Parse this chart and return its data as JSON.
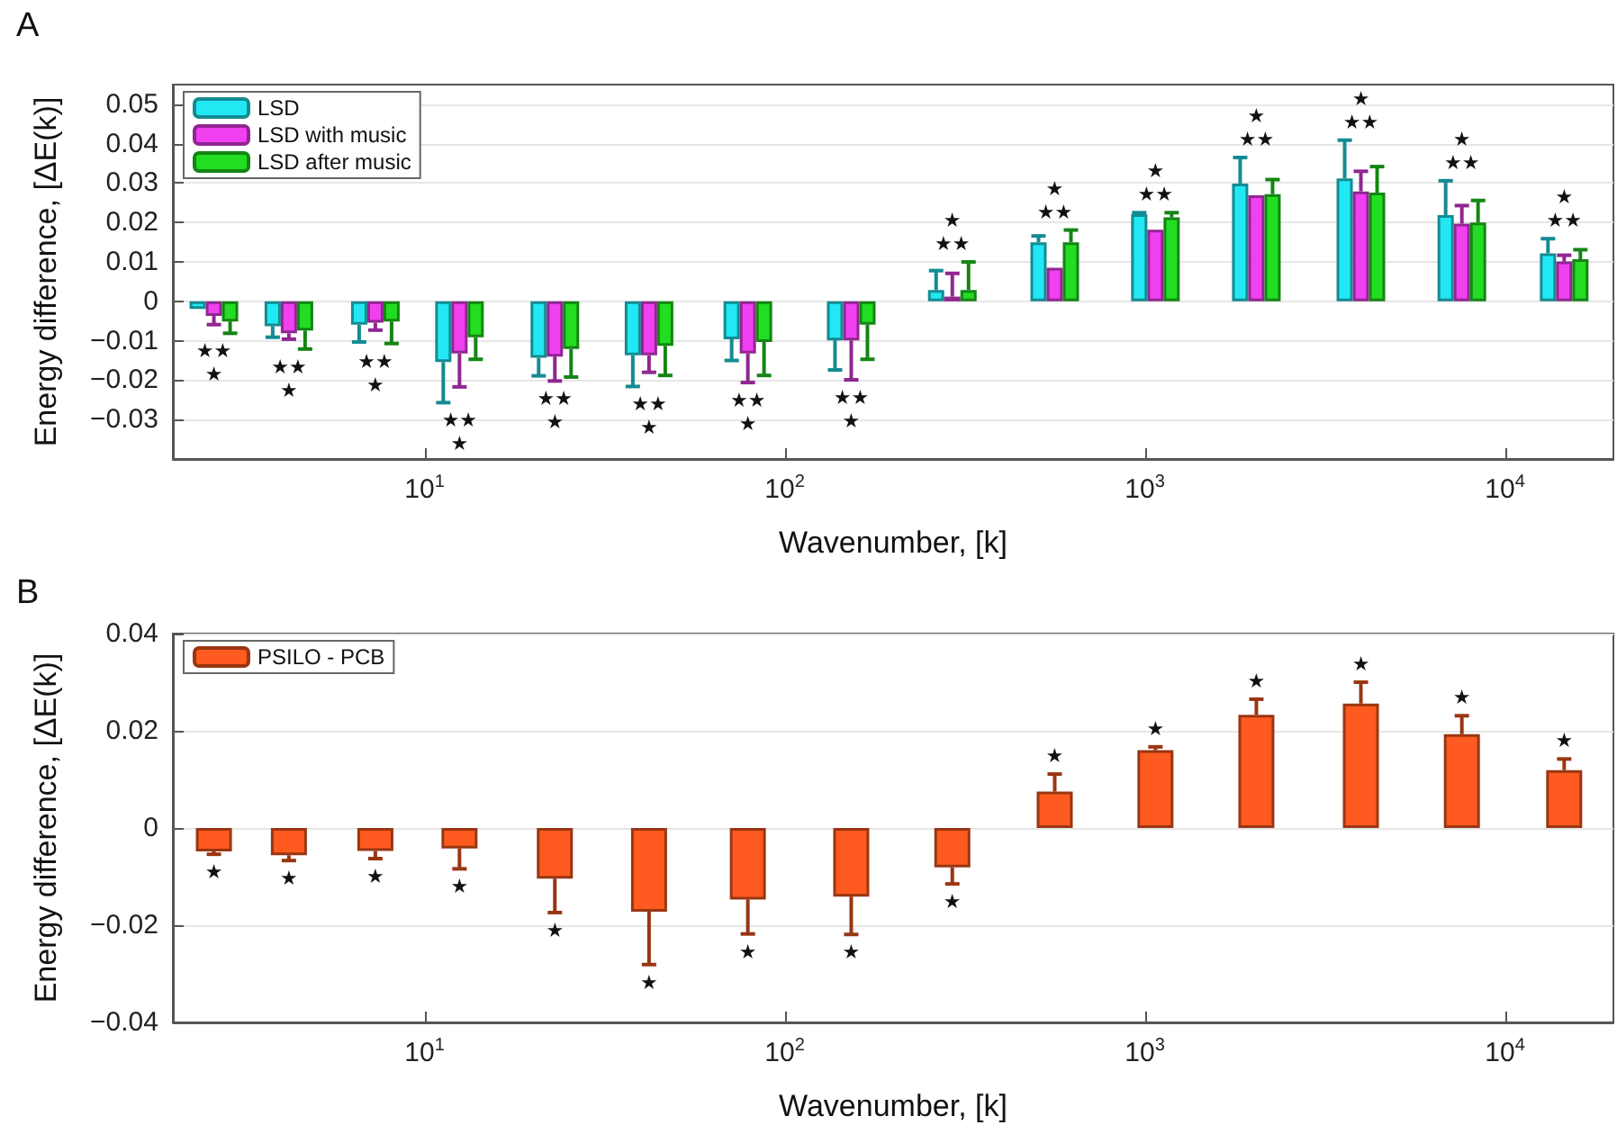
{
  "chart_data": [
    {
      "type": "bar",
      "title": "A",
      "xlabel": "Wavenumber, [k]",
      "ylabel": "Energy difference, [ΔE(k)]",
      "x": [
        2.6,
        4.2,
        7.3,
        12.5,
        23,
        42,
        79,
        153,
        292,
        562,
        1070,
        2040,
        3980,
        7590,
        14600
      ],
      "series": [
        {
          "name": "LSD",
          "color": "#22e8f4",
          "values": [
            -0.0019,
            -0.0063,
            -0.0059,
            -0.0154,
            -0.0143,
            -0.0137,
            -0.0096,
            -0.0099,
            0.0029,
            0.015,
            0.0221,
            0.0299,
            0.0312,
            0.0219,
            0.0122
          ],
          "errors": [
            null,
            [
              -0.0091,
              -0.0063
            ],
            [
              -0.0103,
              -0.0059
            ],
            [
              -0.0257,
              -0.0154
            ],
            [
              -0.0189,
              -0.0143
            ],
            [
              -0.0216,
              -0.0137
            ],
            [
              -0.015,
              -0.0096
            ],
            [
              -0.0174,
              -0.0099
            ],
            [
              0.0029,
              0.0078
            ],
            [
              0.015,
              0.0166
            ],
            [
              0.0221,
              0.0225
            ],
            [
              0.0299,
              0.0365
            ],
            [
              0.0312,
              0.0409
            ],
            [
              0.0219,
              0.0306
            ],
            [
              0.0122,
              0.0159
            ]
          ]
        },
        {
          "name": "LSD with music",
          "color": "#f040f0",
          "values": [
            -0.0037,
            -0.0081,
            -0.0054,
            -0.0132,
            -0.014,
            -0.0137,
            -0.0132,
            -0.0099,
            0.0012,
            0.0085,
            0.0182,
            0.0269,
            0.0279,
            0.0197,
            0.0101
          ],
          "errors": [
            [
              -0.0059,
              -0.0037
            ],
            [
              -0.0096,
              -0.0081
            ],
            [
              -0.0073,
              -0.0054
            ],
            [
              -0.0217,
              -0.0132
            ],
            [
              -0.0202,
              -0.014
            ],
            [
              -0.018,
              -0.0137
            ],
            [
              -0.0206,
              -0.0132
            ],
            [
              -0.0199,
              -0.0099
            ],
            [
              0.0012,
              0.0071
            ],
            null,
            null,
            null,
            [
              0.0279,
              0.033
            ],
            [
              0.0197,
              0.0243
            ],
            [
              0.0101,
              0.0117
            ]
          ]
        },
        {
          "name": "LSD after music",
          "color": "#22dd22",
          "values": [
            -0.0051,
            -0.0074,
            -0.0051,
            -0.0091,
            -0.0121,
            -0.0113,
            -0.0103,
            -0.0059,
            0.0029,
            0.015,
            0.0213,
            0.0272,
            0.0276,
            0.02,
            0.0107
          ],
          "errors": [
            [
              -0.0081,
              -0.0051
            ],
            [
              -0.0121,
              -0.0074
            ],
            [
              -0.0107,
              -0.0051
            ],
            [
              -0.0147,
              -0.0091
            ],
            [
              -0.0192,
              -0.0121
            ],
            [
              -0.0188,
              -0.0113
            ],
            [
              -0.0188,
              -0.0103
            ],
            [
              -0.0147,
              -0.0059
            ],
            [
              0.0029,
              0.01
            ],
            [
              0.015,
              0.0181
            ],
            [
              0.0213,
              0.0225
            ],
            [
              0.0272,
              0.0309
            ],
            [
              0.0276,
              0.0342
            ],
            [
              0.02,
              0.0256
            ],
            [
              0.0107,
              0.0131
            ]
          ]
        }
      ],
      "annotations": [
        "★★",
        "★",
        "★★",
        "★",
        "★★",
        "★",
        "★★",
        "★",
        "★★",
        "★",
        "★★",
        "★",
        "★★",
        "★",
        "★★",
        "★",
        "★★",
        "★",
        "★★",
        "★",
        "★★",
        "★",
        "★★",
        "★",
        "★★",
        "★",
        "★★",
        "★",
        "★★",
        "★"
      ],
      "log": "x",
      "xlim": [
        2,
        20000
      ],
      "xticks": [
        {
          "value": 10,
          "label": "10$^{1}$"
        },
        {
          "value": 100,
          "label": "10$^{2}$"
        },
        {
          "value": 1000,
          "label": "10$^{3}$"
        },
        {
          "value": 10000,
          "label": "10$^{4}$"
        }
      ],
      "ylim": [
        -0.04,
        0.055
      ],
      "yticks": [
        -0.03,
        -0.02,
        -0.01,
        0,
        0.01,
        0.02,
        0.03,
        0.04,
        0.05
      ],
      "grid": "y",
      "legend": "top left"
    },
    {
      "type": "bar",
      "title": "B",
      "xlabel": "Wavenumber, [k]",
      "ylabel": "Energy difference, [ΔE(k)]",
      "x": [
        2.6,
        4.2,
        7.3,
        12.5,
        23,
        42,
        79,
        153,
        292,
        562,
        1070,
        2040,
        3980,
        7590,
        14600
      ],
      "series": [
        {
          "name": "PSILO - PCB",
          "color": "#ff5a1f",
          "values": [
            -0.0048,
            -0.0056,
            -0.0047,
            -0.0042,
            -0.0104,
            -0.0172,
            -0.0147,
            -0.0141,
            -0.0081,
            0.0075,
            0.016,
            0.0233,
            0.0256,
            0.0193,
            0.0119
          ],
          "errors": [
            [
              -0.0054,
              -0.0048
            ],
            [
              -0.0067,
              -0.0056
            ],
            [
              -0.0063,
              -0.0047
            ],
            [
              -0.0084,
              -0.0042
            ],
            [
              -0.0174,
              -0.0104
            ],
            [
              -0.0281,
              -0.0172
            ],
            [
              -0.0218,
              -0.0147
            ],
            [
              -0.0219,
              -0.0141
            ],
            [
              -0.0115,
              -0.0081
            ],
            [
              0.0075,
              0.0111
            ],
            [
              0.016,
              0.0167
            ],
            [
              0.0233,
              0.0265
            ],
            [
              0.0256,
              0.03
            ],
            [
              0.0193,
              0.0231
            ],
            [
              0.0119,
              0.0142
            ]
          ]
        }
      ],
      "annotations": [
        "★",
        "★",
        "★",
        "★",
        "★",
        "★",
        "★",
        "★",
        "★",
        "★",
        "★",
        "★",
        "★",
        "★",
        "★"
      ],
      "log": "x",
      "xlim": [
        2,
        20000
      ],
      "xticks": [
        {
          "value": 10,
          "label": "10$^{1}$"
        },
        {
          "value": 100,
          "label": "10$^{2}$"
        },
        {
          "value": 1000,
          "label": "10$^{3}$"
        },
        {
          "value": 10000,
          "label": "10$^{4}$"
        }
      ],
      "ylim": [
        -0.04,
        0.04
      ],
      "yticks": [
        -0.04,
        -0.02,
        0,
        0.02,
        0.04
      ],
      "grid": "y",
      "legend": "top left"
    }
  ]
}
